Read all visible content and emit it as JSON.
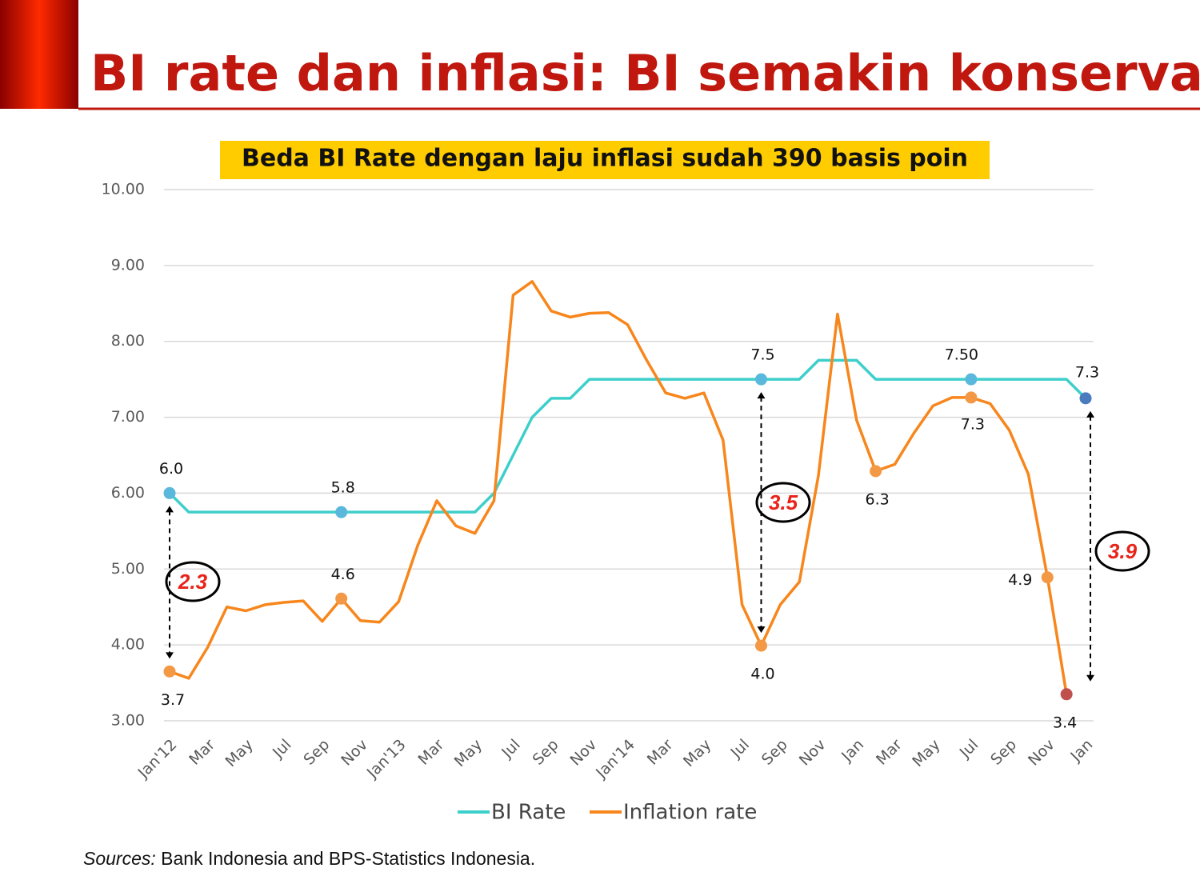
{
  "chart_data": {
    "type": "line",
    "title": "BI rate dan inflasi: BI semakin konservatif",
    "subtitle": "Beda BI Rate dengan laju inflasi sudah 390 basis poin",
    "categories": [
      "Jan'12",
      null,
      "Mar",
      null,
      "May",
      null,
      "Jul",
      null,
      "Sep",
      null,
      "Nov",
      null,
      "Jan'13",
      null,
      "Mar",
      null,
      "May",
      null,
      "Jul",
      null,
      "Sep",
      null,
      "Nov",
      null,
      "Jan'14",
      null,
      "Mar",
      null,
      "May",
      null,
      "Jul",
      null,
      "Sep",
      null,
      "Nov",
      null,
      "Jan",
      null,
      "Mar",
      null,
      "May",
      null,
      "Jul",
      null,
      "Sep",
      null,
      "Nov",
      null,
      "Jan"
    ],
    "series": [
      {
        "name": "BI Rate",
        "color": "#3ecfcb",
        "marker_color": "#5ab8dc",
        "last_marker_color": "#4a7bbf",
        "values": [
          6.0,
          5.75,
          5.75,
          5.75,
          5.75,
          5.75,
          5.75,
          5.75,
          5.75,
          5.75,
          5.75,
          5.75,
          5.75,
          5.75,
          5.75,
          5.75,
          5.75,
          6.0,
          6.5,
          7.0,
          7.25,
          7.25,
          7.5,
          7.5,
          7.5,
          7.5,
          7.5,
          7.5,
          7.5,
          7.5,
          7.5,
          7.5,
          7.5,
          7.5,
          7.75,
          7.75,
          7.75,
          7.5,
          7.5,
          7.5,
          7.5,
          7.5,
          7.5,
          7.5,
          7.5,
          7.5,
          7.5,
          7.5,
          7.25
        ],
        "value_labels": [
          "6.0",
          null,
          null,
          null,
          null,
          null,
          null,
          null,
          null,
          "5.8",
          null,
          null,
          null,
          null,
          null,
          null,
          null,
          null,
          null,
          null,
          null,
          null,
          null,
          null,
          null,
          null,
          null,
          null,
          null,
          null,
          null,
          "7.5",
          null,
          null,
          null,
          null,
          null,
          null,
          null,
          null,
          null,
          null,
          "7.50",
          null,
          null,
          null,
          null,
          null,
          "7.3"
        ]
      },
      {
        "name": "Inflation rate",
        "color": "#f7861c",
        "marker_color": "#f39845",
        "last_marker_color": "#c0504d",
        "values": [
          3.65,
          3.56,
          3.97,
          4.5,
          4.45,
          4.53,
          4.56,
          4.58,
          4.31,
          4.61,
          4.32,
          4.3,
          4.57,
          5.31,
          5.9,
          5.57,
          5.47,
          5.9,
          8.61,
          8.79,
          8.4,
          8.32,
          8.37,
          8.38,
          8.22,
          7.75,
          7.32,
          7.25,
          7.32,
          6.7,
          4.53,
          3.99,
          4.53,
          4.83,
          6.23,
          8.36,
          6.96,
          6.29,
          6.38,
          6.79,
          7.15,
          7.26,
          7.26,
          7.18,
          6.83,
          6.25,
          4.89,
          3.35,
          null
        ],
        "value_labels": [
          "3.7",
          null,
          null,
          null,
          null,
          null,
          null,
          null,
          null,
          "4.6",
          null,
          null,
          null,
          null,
          null,
          null,
          null,
          null,
          null,
          null,
          null,
          null,
          null,
          null,
          null,
          null,
          null,
          null,
          null,
          null,
          null,
          "4.0",
          null,
          null,
          null,
          null,
          null,
          "6.3",
          null,
          null,
          null,
          null,
          "7.3",
          null,
          null,
          null,
          "4.9",
          "3.4",
          null
        ]
      }
    ],
    "ylim": [
      3,
      10
    ],
    "yticks": [
      {
        "value": 3,
        "label": "3.00"
      },
      {
        "value": 4,
        "label": "4.00"
      },
      {
        "value": 5,
        "label": "5.00"
      },
      {
        "value": 6,
        "label": "6.00"
      },
      {
        "value": 7,
        "label": "7.00"
      },
      {
        "value": 8,
        "label": "8.00"
      },
      {
        "value": 9,
        "label": "9.00"
      },
      {
        "value": 10,
        "label": "10.00"
      }
    ],
    "grid": true,
    "legend": "bottom",
    "annotations": [
      "2.3",
      "3.5",
      "3.9"
    ]
  },
  "source": {
    "label": "Sources:",
    "text": "Bank Indonesia and BPS-Statistics Indonesia."
  }
}
